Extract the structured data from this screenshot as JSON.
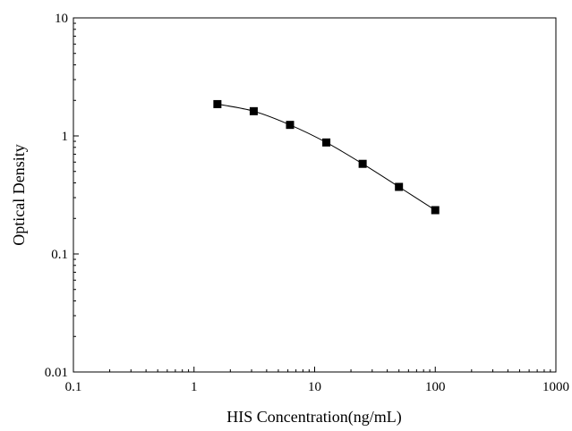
{
  "chart_data": {
    "type": "scatter",
    "title": "",
    "xlabel": "HIS Concentration(ng/mL)",
    "ylabel": "Optical Density",
    "x_scale": "log",
    "y_scale": "log",
    "xlim": [
      0.1,
      1000
    ],
    "ylim": [
      0.01,
      10
    ],
    "x_ticks": [
      0.1,
      1,
      10,
      100,
      1000
    ],
    "x_tick_labels": [
      "0.1",
      "1",
      "10",
      "100",
      "1000"
    ],
    "y_ticks": [
      0.01,
      0.1,
      1,
      10
    ],
    "y_tick_labels": [
      "0.01",
      "0.1",
      "1",
      "10"
    ],
    "grid": false,
    "legend": "none",
    "marker": "square",
    "fitted_curve": true,
    "color": "#000000",
    "series": [
      {
        "x": [
          1.5625,
          3.125,
          6.25,
          12.5,
          25,
          50,
          100
        ],
        "y": [
          1.86,
          1.62,
          1.24,
          0.88,
          0.58,
          0.37,
          0.235
        ]
      }
    ]
  }
}
